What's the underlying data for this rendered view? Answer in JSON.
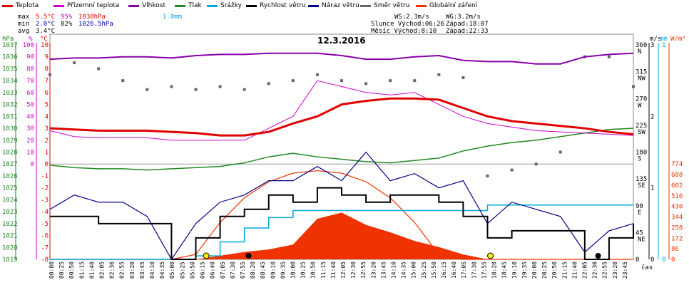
{
  "chart_data": {
    "type": "line",
    "title": "12.3.2016",
    "legend": [
      {
        "name": "Teplota",
        "color": "#e00000"
      },
      {
        "name": "Přízemní teplota",
        "color": "#cc00cc"
      },
      {
        "name": "Vlhkost",
        "color": "#8800aa"
      },
      {
        "name": "Tlak",
        "color": "#228822"
      },
      {
        "name": "Srážky",
        "color": "#00aadd"
      },
      {
        "name": "Rychlost větru",
        "color": "#000000"
      },
      {
        "name": "Náraz větru",
        "color": "#000088"
      },
      {
        "name": "Směr větru",
        "color": "#666666"
      },
      {
        "name": "Globální záření",
        "color": "#ee3300"
      }
    ],
    "stats": {
      "max_label": "max",
      "max_temp": "5.5°C",
      "max_hum": "95%",
      "max_press": "1030hPa",
      "max_rain": "1.0mm",
      "min_label": "min",
      "min_temp": "2.0°C",
      "min_hum": "82%",
      "min_press": "1026.5hPa",
      "avg_label": "avg",
      "avg_temp": "3.4°C",
      "ws": "WS:2.3m/s",
      "wg": "WG:3.2m/s",
      "sun": "Slunce Východ:06:26",
      "sun_set": "Západ:18:07",
      "moon": "Měsíc Východ:8:10",
      "moon_set": "Západ:22:33"
    },
    "axes": {
      "hpa_label": "hPa",
      "pct_label": "%",
      "c_label": "°C",
      "ms_label": "m/s",
      "mm_label": "mm",
      "wm2_label": "W/m²",
      "x_label": "čas",
      "hpa_ticks": [
        "1037",
        "1036",
        "1035",
        "1034",
        "1033",
        "1032",
        "1031",
        "1030",
        "1029",
        "1028",
        "1027",
        "1026",
        "1025",
        "1024",
        "1023",
        "1022",
        "1021",
        "1020",
        "1019"
      ],
      "pct_ticks": [
        "100",
        "90",
        "80",
        "70",
        "60",
        "50",
        "40",
        "30",
        "20",
        "10",
        "0"
      ],
      "c_ticks": [
        "10",
        "9",
        "8",
        "7",
        "6",
        "5",
        "4",
        "3",
        "2",
        "1",
        "0",
        "-1",
        "-2",
        "-3",
        "-4",
        "-5",
        "-6",
        "-7",
        "-8"
      ],
      "dir_ticks": [
        {
          "deg": "360",
          "dir": "N"
        },
        {
          "deg": "315",
          "dir": "NW"
        },
        {
          "deg": "270",
          "dir": "W"
        },
        {
          "deg": "225",
          "dir": "SW"
        },
        {
          "deg": "180",
          "dir": "S"
        },
        {
          "deg": "135",
          "dir": "SE"
        },
        {
          "deg": "90",
          "dir": "E"
        },
        {
          "deg": "45",
          "dir": "NE"
        },
        {
          "deg": "0",
          "dir": ""
        }
      ],
      "ms_ticks": [
        "3",
        "2",
        "1",
        "0"
      ],
      "mm_ticks": [
        "1",
        "0"
      ],
      "wm2_ticks": [
        "774",
        "688",
        "602",
        "516",
        "430",
        "344",
        "258",
        "172",
        "86",
        "0"
      ],
      "x_ticks": [
        "00:00",
        "00:25",
        "00:50",
        "01:15",
        "01:40",
        "02:05",
        "02:30",
        "02:55",
        "03:20",
        "03:45",
        "04:10",
        "04:35",
        "05:00",
        "05:25",
        "05:50",
        "06:15",
        "06:40",
        "07:05",
        "07:30",
        "07:55",
        "08:20",
        "08:45",
        "09:10",
        "09:35",
        "10:00",
        "10:25",
        "10:50",
        "11:15",
        "11:40",
        "12:05",
        "12:30",
        "12:55",
        "13:20",
        "13:45",
        "14:10",
        "14:35",
        "15:00",
        "15:25",
        "15:50",
        "16:15",
        "16:40",
        "17:05",
        "17:30",
        "17:55",
        "18:20",
        "18:45",
        "19:10",
        "19:35",
        "20:00",
        "20:25",
        "20:50",
        "21:15",
        "21:40",
        "22:05",
        "22:30",
        "22:55",
        "23:20",
        "23:45"
      ]
    },
    "hours": [
      0,
      1,
      2,
      3,
      4,
      5,
      6,
      7,
      8,
      9,
      10,
      11,
      12,
      13,
      14,
      15,
      16,
      17,
      18,
      19,
      20,
      21,
      22,
      23,
      24
    ],
    "temperature_c": [
      3.0,
      2.9,
      2.8,
      2.8,
      2.8,
      2.7,
      2.6,
      2.4,
      2.4,
      2.7,
      3.4,
      4.0,
      5.0,
      5.3,
      5.5,
      5.5,
      5.4,
      4.7,
      4.0,
      3.6,
      3.4,
      3.2,
      3.0,
      2.7,
      2.5
    ],
    "ground_temp_c": [
      2.8,
      2.3,
      2.2,
      2.2,
      2.2,
      2.0,
      2.0,
      2.0,
      2.0,
      3.0,
      4.0,
      7.0,
      6.5,
      6.0,
      5.8,
      6.0,
      5.0,
      4.0,
      3.4,
      3.1,
      2.8,
      2.7,
      2.6,
      2.5,
      2.4
    ],
    "humidity_pct": [
      88,
      89,
      89,
      90,
      90,
      89,
      91,
      92,
      92,
      93,
      93,
      93,
      91,
      88,
      88,
      90,
      91,
      87,
      86,
      86,
      84,
      84,
      90,
      92,
      93
    ],
    "pressure_hpa": [
      1026.9,
      1026.7,
      1026.6,
      1026.6,
      1026.5,
      1026.6,
      1026.7,
      1026.8,
      1027.1,
      1027.6,
      1027.9,
      1027.6,
      1027.4,
      1027.2,
      1027.1,
      1027.3,
      1027.5,
      1028.1,
      1028.5,
      1028.8,
      1029.0,
      1029.3,
      1029.6,
      1029.9,
      1030.0
    ],
    "rain_mm": [
      0,
      0,
      0,
      0,
      0,
      0,
      0.05,
      0.25,
      0.45,
      0.6,
      0.7,
      0.7,
      0.7,
      0.7,
      0.7,
      0.7,
      0.7,
      0.7,
      0.78,
      0.78,
      0.78,
      0.78,
      0.78,
      0.78,
      0.78
    ],
    "wind_speed_ms": [
      0.6,
      0.6,
      0.5,
      0.5,
      0.5,
      0.0,
      0.3,
      0.6,
      0.7,
      0.9,
      0.8,
      1.0,
      0.9,
      0.8,
      0.9,
      0.9,
      0.8,
      0.6,
      0.3,
      0.4,
      0.4,
      0.4,
      0.0,
      0.3,
      0.5
    ],
    "wind_gust_ms": [
      0.7,
      0.9,
      0.8,
      0.8,
      0.6,
      0.0,
      0.5,
      0.8,
      0.9,
      1.1,
      1.1,
      1.3,
      1.1,
      1.5,
      1.1,
      1.2,
      1.0,
      1.1,
      0.5,
      0.8,
      0.7,
      0.6,
      0.1,
      0.4,
      0.5
    ],
    "wind_dir_deg": [
      310,
      330,
      320,
      300,
      285,
      290,
      285,
      290,
      285,
      295,
      300,
      310,
      300,
      295,
      300,
      300,
      310,
      305,
      140,
      150,
      160,
      180,
      340,
      340,
      290
    ],
    "solar_wm2": [
      0,
      0,
      0,
      0,
      0,
      0,
      0,
      30,
      60,
      80,
      120,
      330,
      380,
      280,
      220,
      150,
      100,
      40,
      0,
      0,
      0,
      0,
      0,
      0,
      0
    ],
    "solar_theoretical_wm2": [
      0,
      0,
      0,
      0,
      0,
      0,
      40,
      300,
      500,
      630,
      700,
      720,
      700,
      630,
      500,
      300,
      40,
      0,
      0,
      0,
      0,
      0,
      0,
      0,
      0
    ]
  }
}
